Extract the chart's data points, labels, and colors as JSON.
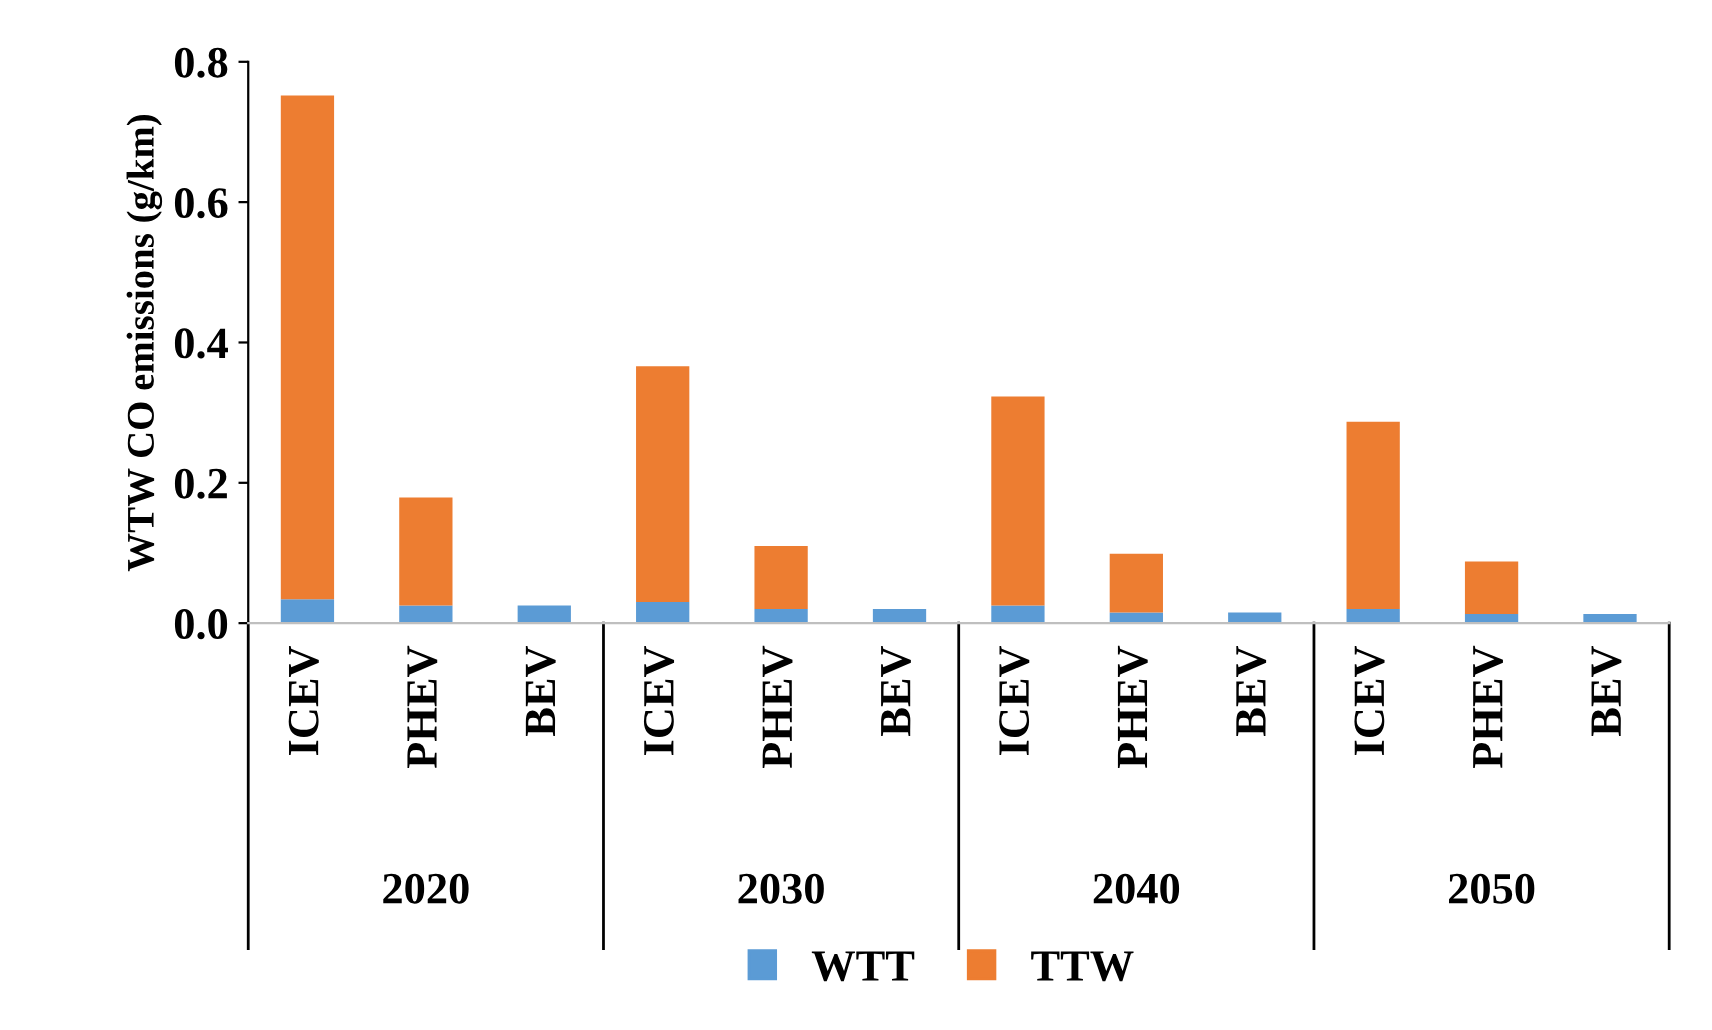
{
  "chart_data": {
    "type": "bar",
    "stacked": true,
    "ylabel": "WTW CO emissions (g/km)",
    "categories": [
      "ICEV",
      "PHEV",
      "BEV",
      "ICEV",
      "PHEV",
      "BEV",
      "ICEV",
      "PHEV",
      "BEV",
      "ICEV",
      "PHEV",
      "BEV"
    ],
    "annotations": [
      "2020",
      "2030",
      "2040",
      "2050"
    ],
    "series": [
      {
        "name": "WTT",
        "color": "#5b9bd5",
        "values": [
          0.034,
          0.025,
          0.025,
          0.03,
          0.02,
          0.02,
          0.025,
          0.015,
          0.015,
          0.02,
          0.013,
          0.013
        ]
      },
      {
        "name": "TTW",
        "color": "#ed7d31",
        "values": [
          0.718,
          0.154,
          0,
          0.336,
          0.09,
          0,
          0.298,
          0.084,
          0,
          0.267,
          0.075,
          0
        ]
      }
    ],
    "ylim": [
      0,
      0.8
    ],
    "yticks": [
      {
        "value": 0,
        "label": "0.0"
      },
      {
        "value": 0.2,
        "label": "0.2"
      },
      {
        "value": 0.4,
        "label": "0.4"
      },
      {
        "value": 0.6,
        "label": "0.6"
      },
      {
        "value": 0.8,
        "label": "0.8"
      }
    ],
    "grid": false,
    "legend": "bottom"
  }
}
